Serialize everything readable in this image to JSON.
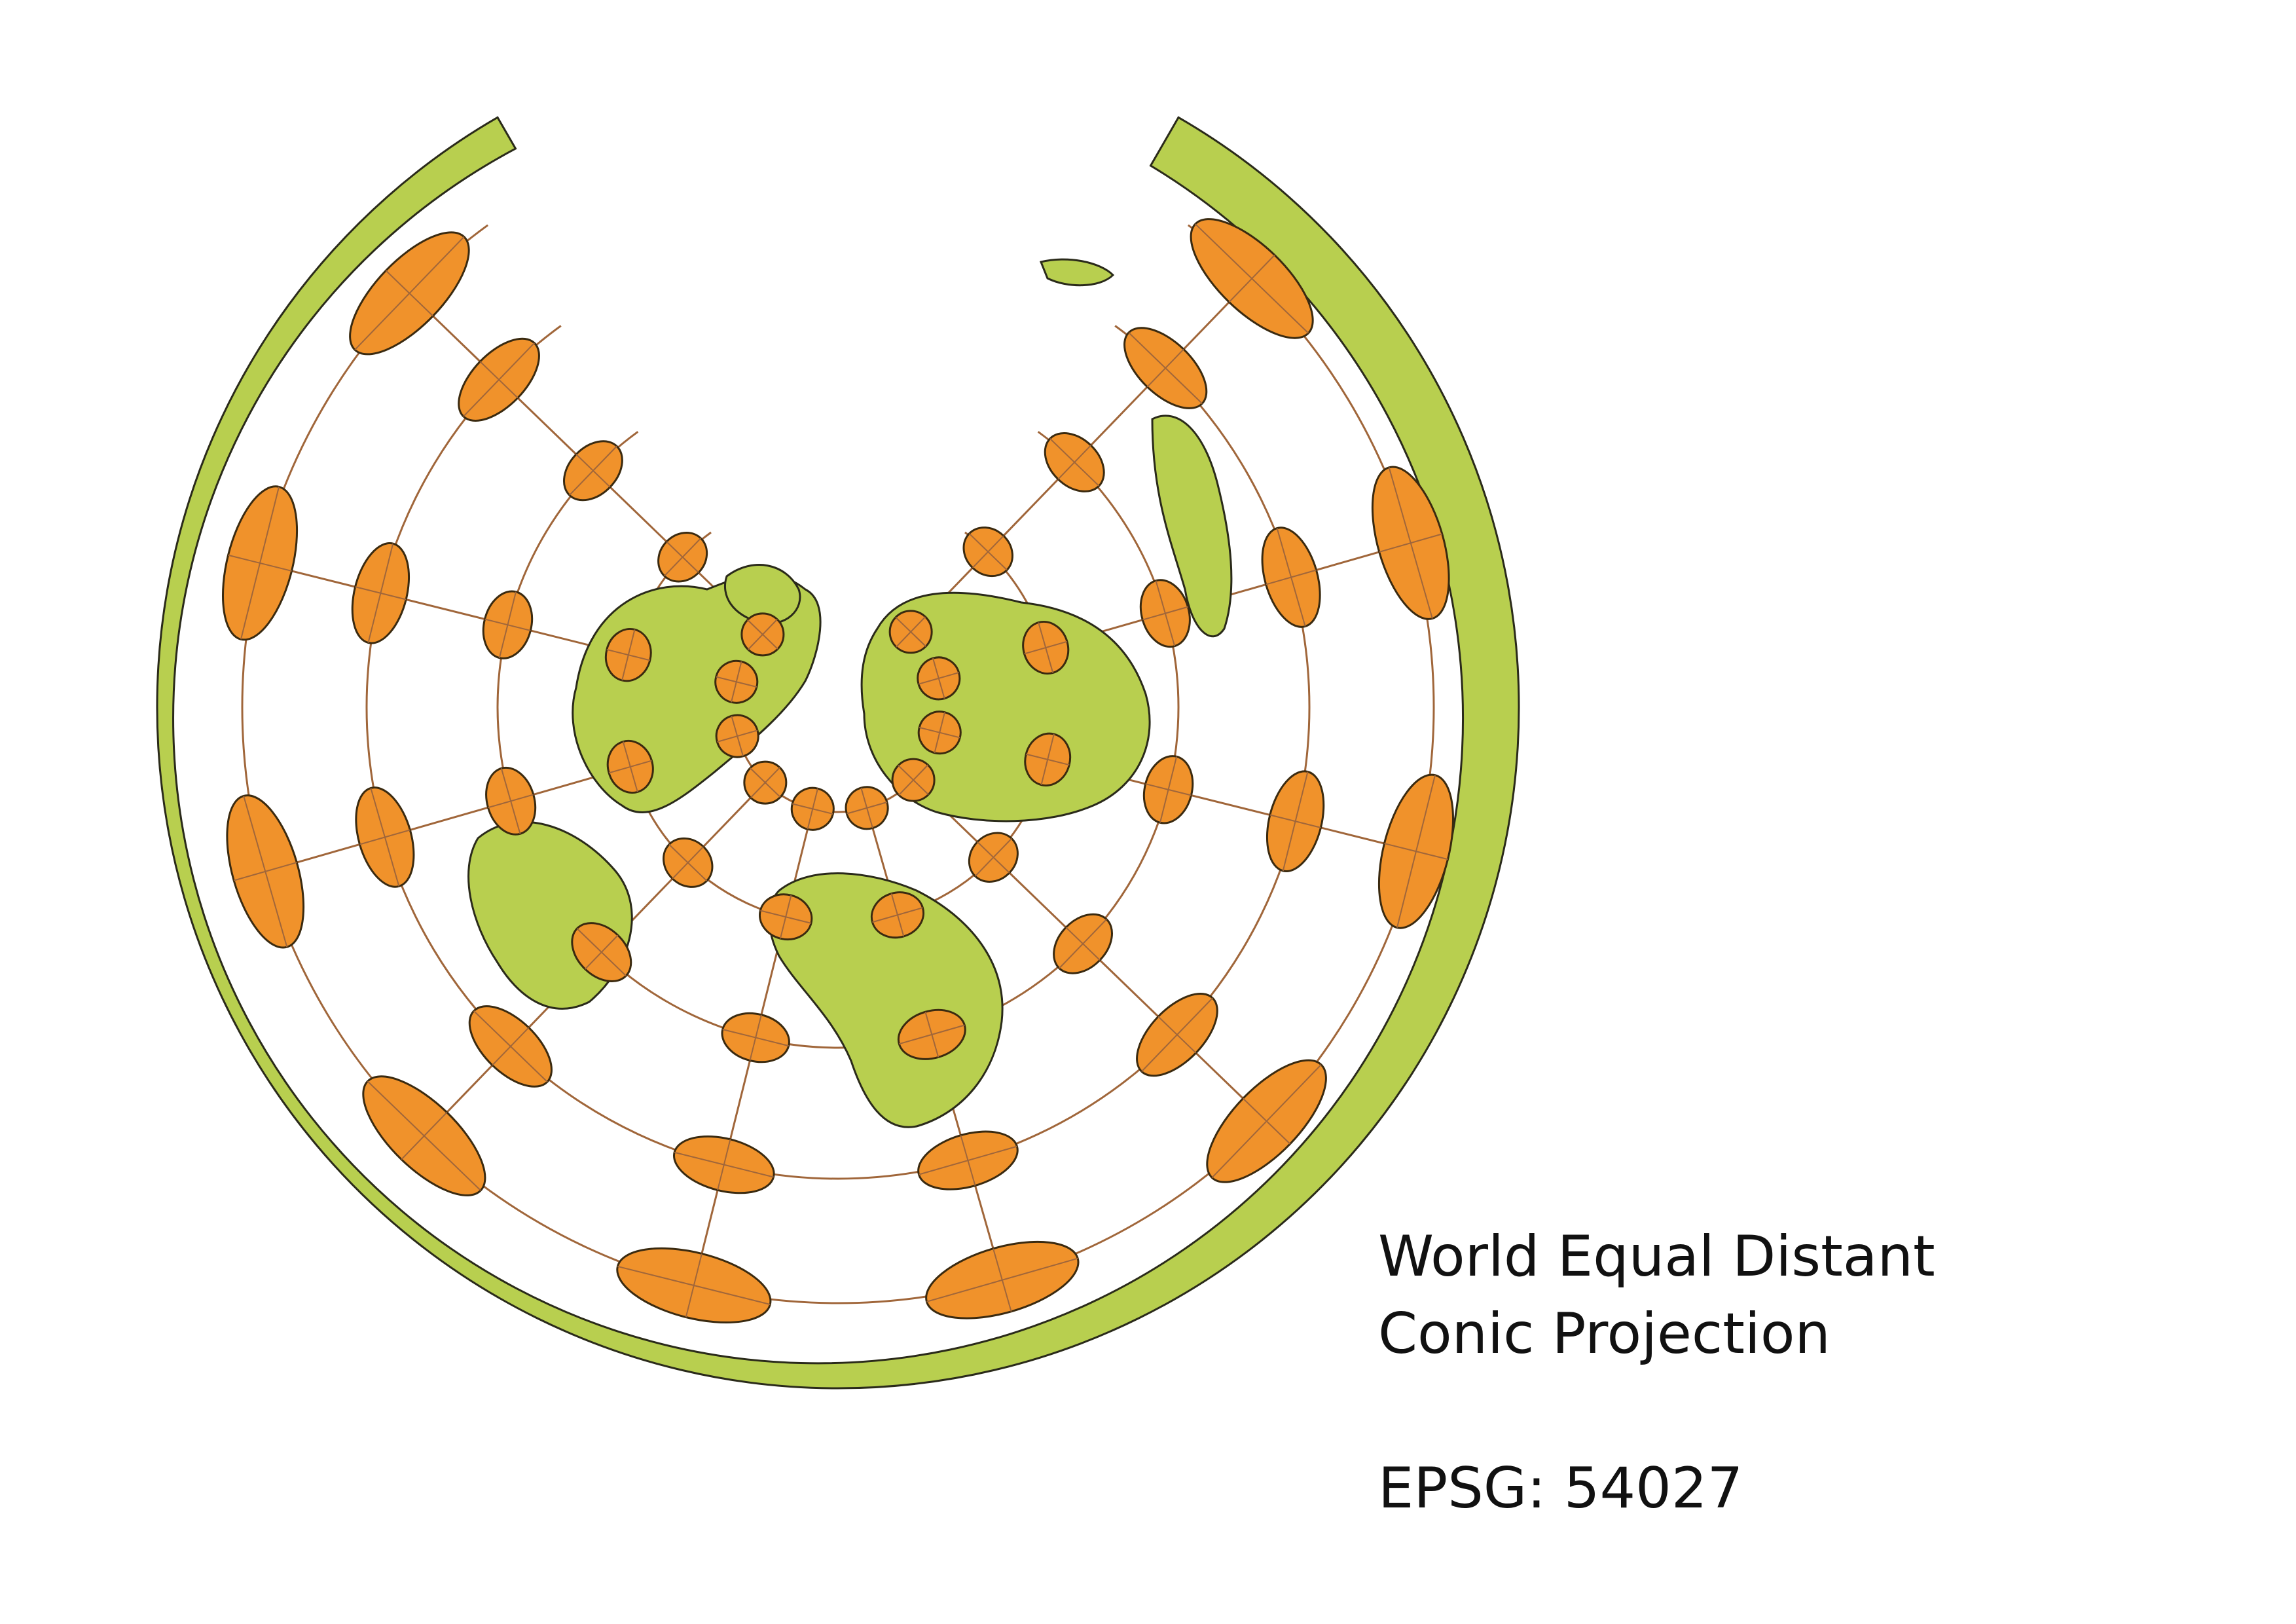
{
  "caption": {
    "title_line_1": "World Equal Distant",
    "title_line_2": "Conic Projection",
    "epsg_label": "EPSG: 54027"
  },
  "colors": {
    "land": "#b8cf4f",
    "land_stroke": "#2a2a1a",
    "ellipse_fill": "#f0922b",
    "ellipse_stroke": "#3a2a10",
    "graticule": "#a0663a",
    "background": "#ffffff"
  },
  "legend_elements": {
    "ellipses": "tissot-indicatrix",
    "grid": "graticule"
  }
}
